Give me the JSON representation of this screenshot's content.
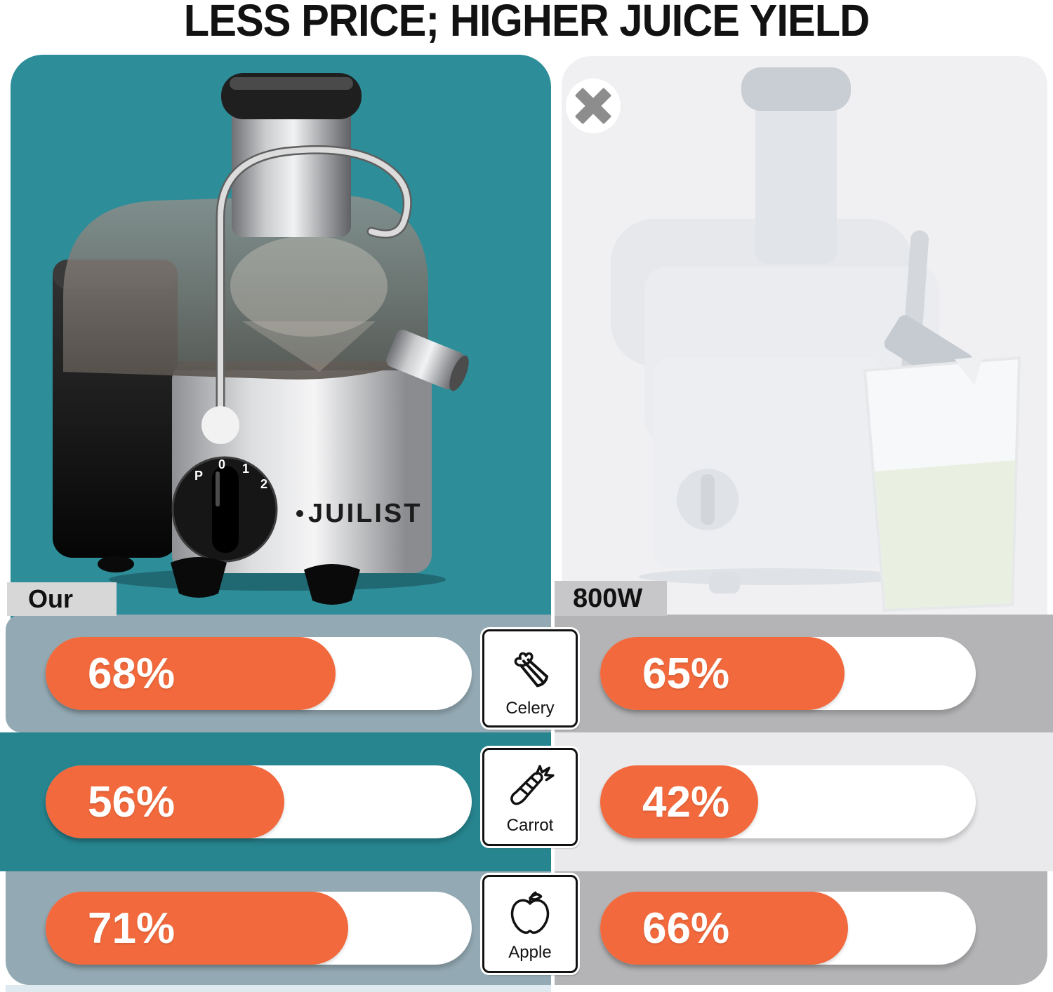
{
  "title": "LESS PRICE; HIGHER JUICE YIELD",
  "our": {
    "label": "Our",
    "brand": "JUILIST",
    "dial": [
      "P",
      "0",
      "1",
      "2"
    ]
  },
  "competitor": {
    "label": "800W"
  },
  "rows": [
    {
      "category": "Celery",
      "our_value": "68%",
      "competitor_value": "65%"
    },
    {
      "category": "Carrot",
      "our_value": "56%",
      "competitor_value": "42%"
    },
    {
      "category": "Apple",
      "our_value": "71%",
      "competitor_value": "66%"
    }
  ],
  "chart_data": {
    "type": "bar",
    "title": "LESS PRICE; HIGHER JUICE YIELD",
    "categories": [
      "Celery",
      "Carrot",
      "Apple"
    ],
    "series": [
      {
        "name": "Our (JUILIST)",
        "values": [
          68,
          56,
          71
        ]
      },
      {
        "name": "800W competitor",
        "values": [
          65,
          42,
          66
        ]
      }
    ],
    "unit": "% juice yield",
    "value_range": [
      0,
      100
    ],
    "layout": "two-column comparison, orange fill on white track, value labels inside bars"
  },
  "colors": {
    "teal_panel": "#2D8D99",
    "teal_band": "#27858F",
    "bluegray_band": "#93A9B3",
    "light_panel": "#F0F0F2",
    "gray_band": "#B4B4B6",
    "lightgray_band": "#EAEAEC",
    "bar_orange": "#F1693C",
    "bar_track": "#FFFFFF",
    "title_text": "#121212"
  }
}
